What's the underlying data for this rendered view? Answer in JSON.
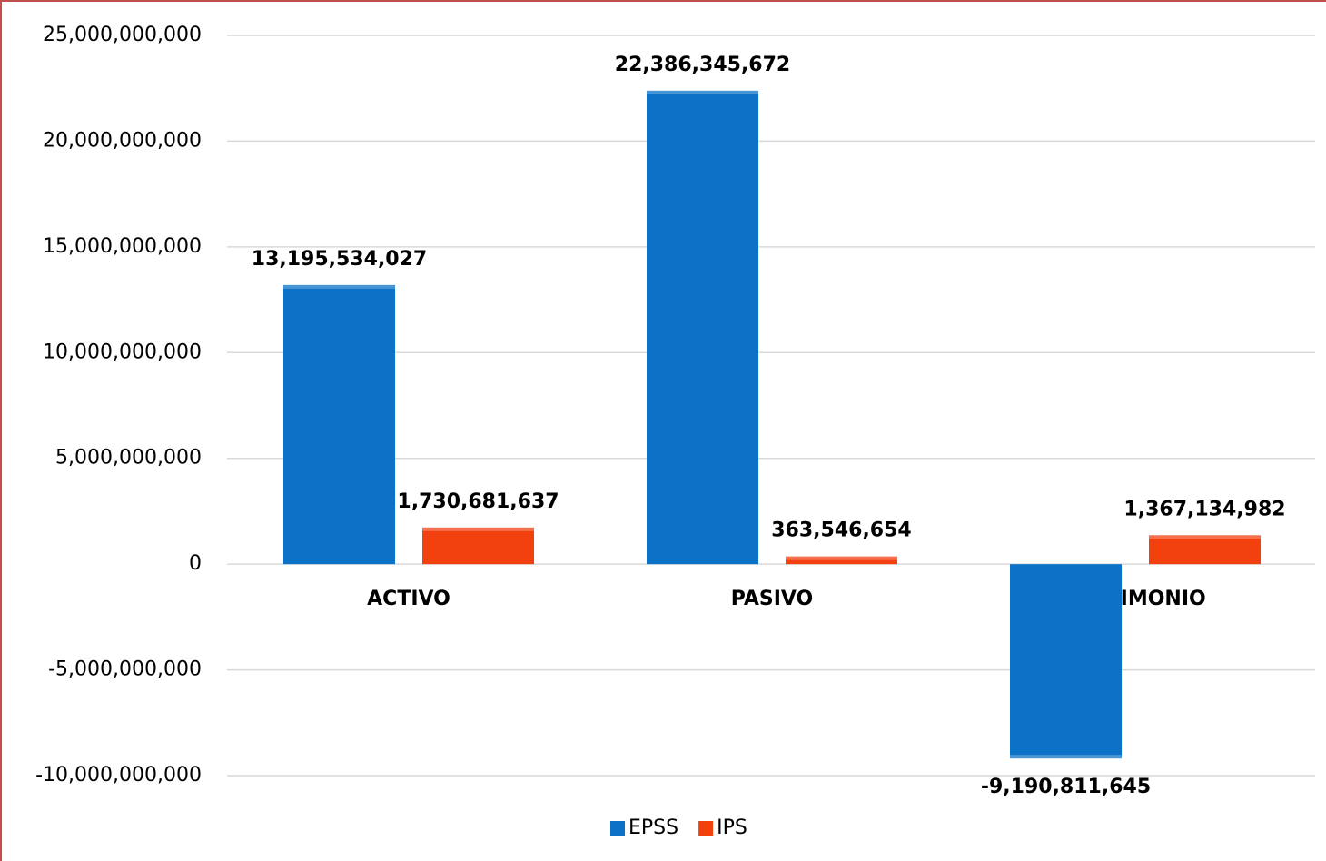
{
  "chart_data": {
    "type": "bar",
    "categories": [
      "ACTIVO",
      "PASIVO",
      "PATRIMONIO"
    ],
    "series": [
      {
        "name": "EPSS",
        "color": "#0b72c8",
        "values": [
          13195534027,
          22386345672,
          -9190811645
        ],
        "value_labels": [
          "13,195,534,027",
          "22,386,345,672",
          "-9,190,811,645"
        ]
      },
      {
        "name": "IPS",
        "color": "#f2400f",
        "values": [
          1730681637,
          363546654,
          1367134982
        ],
        "value_labels": [
          "1,730,681,637",
          "363,546,654",
          "1,367,134,982"
        ]
      }
    ],
    "ylim": [
      -10000000000,
      25000000000
    ],
    "yticks": [
      {
        "value": -10000000000,
        "label": "-10,000,000,000"
      },
      {
        "value": -5000000000,
        "label": "-5,000,000,000"
      },
      0,
      {
        "value": 5000000000,
        "label": "5,000,000,000"
      },
      {
        "value": 10000000000,
        "label": "10,000,000,000"
      },
      {
        "value": 15000000000,
        "label": "15,000,000,000"
      },
      {
        "value": 20000000000,
        "label": "20,000,000,000"
      },
      {
        "value": 25000000000,
        "label": "25,000,000,000"
      }
    ],
    "grid": true,
    "legend": "bottom"
  }
}
